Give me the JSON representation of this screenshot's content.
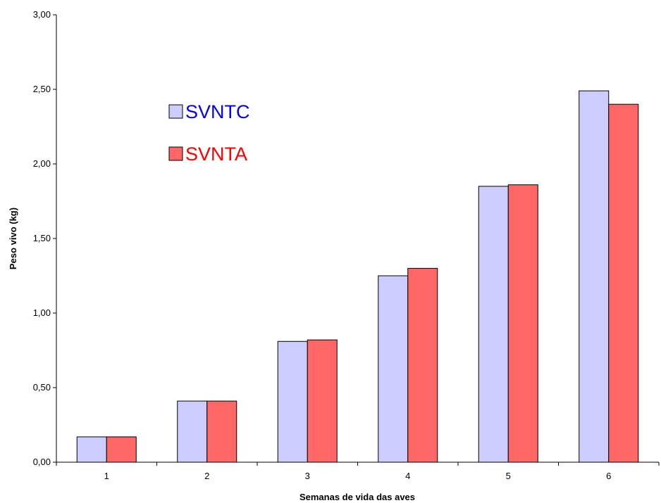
{
  "chart_data": {
    "type": "bar",
    "categories": [
      "1",
      "2",
      "3",
      "4",
      "5",
      "6"
    ],
    "series": [
      {
        "name": "SVNTC",
        "values": [
          0.17,
          0.41,
          0.81,
          1.25,
          1.85,
          2.49
        ],
        "color": "#ccccff",
        "label_color": "#0000ff"
      },
      {
        "name": "SVNTA",
        "values": [
          0.17,
          0.41,
          0.82,
          1.3,
          1.86,
          2.4
        ],
        "color": "#ff6666",
        "label_color": "#ff0000"
      }
    ],
    "xlabel": "Semanas de vida das aves",
    "ylabel": "Peso vivo (kg)",
    "ylim": [
      0,
      3.0
    ],
    "yticks": [
      "0,00",
      "0,50",
      "1,00",
      "1,50",
      "2,00",
      "2,50",
      "3,00"
    ],
    "grid": false,
    "legend_position": "top-left"
  }
}
